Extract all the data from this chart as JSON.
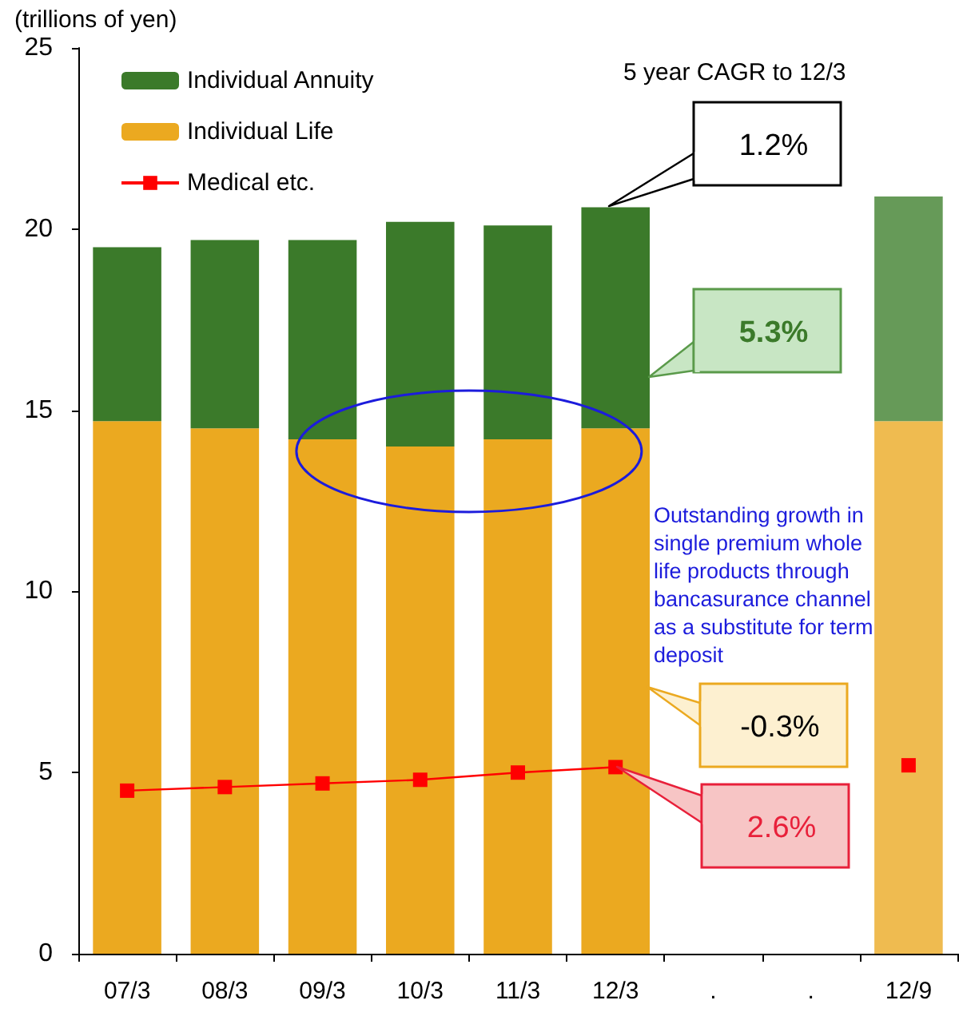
{
  "chart_data": {
    "type": "bar",
    "stacked": true,
    "ylabel": "(trillions of yen)",
    "categories": [
      "07/3",
      "08/3",
      "09/3",
      "10/3",
      "11/3",
      "12/3",
      ".",
      ".",
      "12/9"
    ],
    "series": [
      {
        "name": "Individual Life",
        "color": "#eba920",
        "colors": [
          "#eba920",
          "#eba920",
          "#eba920",
          "#eba920",
          "#eba920",
          "#eba920",
          null,
          null,
          "#efbb50"
        ],
        "values": [
          14.7,
          14.5,
          14.2,
          14.0,
          14.2,
          14.5,
          null,
          null,
          14.7
        ]
      },
      {
        "name": "Individual Annuity",
        "color": "#3b7a2a",
        "colors": [
          "#3b7a2a",
          "#3b7a2a",
          "#3b7a2a",
          "#3b7a2a",
          "#3b7a2a",
          "#3b7a2a",
          null,
          null,
          "#669a58"
        ],
        "values": [
          4.8,
          5.2,
          5.5,
          6.2,
          5.9,
          6.1,
          null,
          null,
          6.2
        ]
      },
      {
        "name": "Medical etc.",
        "type": "line",
        "color": "#ff0000",
        "marker": "square",
        "values": [
          4.5,
          4.6,
          4.7,
          4.8,
          5.0,
          5.15,
          null,
          null,
          5.2
        ]
      }
    ],
    "ylim": [
      0,
      25
    ],
    "yticks": [
      0,
      5,
      10,
      15,
      20,
      25
    ],
    "grid": false,
    "legend": "top left",
    "annotations": [
      "5 year CAGR to 12/3",
      "1.2%",
      "5.3%",
      "Outstanding growth in single premium whole life products through bancasurance channel as a substitute for term deposit",
      "-0.3%",
      "2.6%"
    ]
  }
}
